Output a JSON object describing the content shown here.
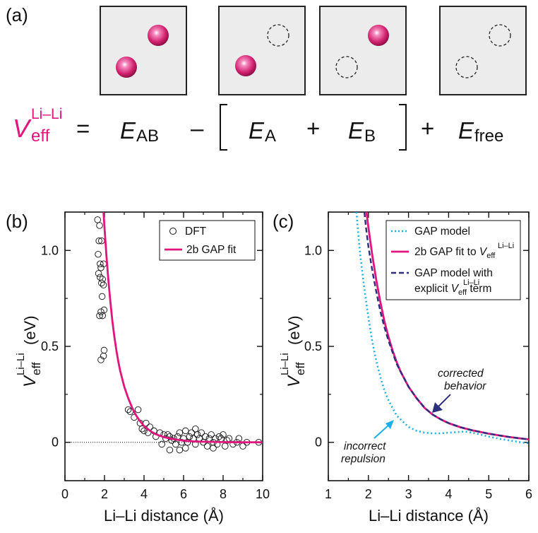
{
  "panel_a": {
    "label": "(a)",
    "equation": {
      "lhs_symbol": "V",
      "lhs_sub": "eff",
      "lhs_sup": "Li–Li",
      "equals": "=",
      "term1": {
        "symbol": "E",
        "sub": "AB"
      },
      "minus": "–",
      "term2": {
        "symbol": "E",
        "sub": "A"
      },
      "plus1": "+",
      "term3": {
        "symbol": "E",
        "sub": "B"
      },
      "plus2": "+",
      "term4": {
        "symbol": "E",
        "sub": "free"
      }
    }
  },
  "colors": {
    "magenta": "#e0157d",
    "cyan": "#1db0e6",
    "navy": "#2c2e7e",
    "atom_fill": "#d2216f"
  },
  "chart_data": [
    {
      "panel": "(b)",
      "type": "scatter",
      "xlabel": "Li–Li distance (Å)",
      "ylabel_symbol": "V",
      "ylabel_sub": "eff",
      "ylabel_sup": "Li–Li",
      "ylabel_unit": "(eV)",
      "xlim": [
        0,
        10
      ],
      "ylim": [
        -0.2,
        1.2
      ],
      "xticks": [
        "0",
        "2",
        "4",
        "6",
        "8",
        "10"
      ],
      "yticks": [
        "0",
        "0.5",
        "1.0"
      ],
      "legend": {
        "position": "top-right",
        "entries": [
          "DFT",
          "2b GAP fit"
        ]
      },
      "series": [
        {
          "name": "DFT",
          "marker": "open-circle",
          "points": [
            [
              1.65,
              1.16
            ],
            [
              1.75,
              1.13
            ],
            [
              1.72,
              1.05
            ],
            [
              1.85,
              1.05
            ],
            [
              1.68,
              0.98
            ],
            [
              1.78,
              0.93
            ],
            [
              1.82,
              0.91
            ],
            [
              1.95,
              0.93
            ],
            [
              1.7,
              0.88
            ],
            [
              1.78,
              0.86
            ],
            [
              1.9,
              0.85
            ],
            [
              1.85,
              0.83
            ],
            [
              1.95,
              0.82
            ],
            [
              1.88,
              0.76
            ],
            [
              1.98,
              0.69
            ],
            [
              1.82,
              0.68
            ],
            [
              1.9,
              0.66
            ],
            [
              1.75,
              0.66
            ],
            [
              1.82,
              0.43
            ],
            [
              1.95,
              0.45
            ],
            [
              1.98,
              0.48
            ],
            [
              3.2,
              0.17
            ],
            [
              3.3,
              0.16
            ],
            [
              3.7,
              0.17
            ],
            [
              3.5,
              0.13
            ],
            [
              3.8,
              0.1
            ],
            [
              4.1,
              0.1
            ],
            [
              4.3,
              0.08
            ],
            [
              3.9,
              0.07
            ],
            [
              4.0,
              0.06
            ],
            [
              4.2,
              0.05
            ],
            [
              4.5,
              0.06
            ],
            [
              4.6,
              0.03
            ],
            [
              4.8,
              0.05
            ],
            [
              5.0,
              0.04
            ],
            [
              5.1,
              0.02
            ],
            [
              5.2,
              0.04
            ],
            [
              5.3,
              0.03
            ],
            [
              5.4,
              0.01
            ],
            [
              5.5,
              0.02
            ],
            [
              5.6,
              -0.01
            ],
            [
              5.7,
              0.03
            ],
            [
              5.8,
              0.05
            ],
            [
              5.9,
              0.0
            ],
            [
              6.0,
              0.02
            ],
            [
              6.1,
              0.06
            ],
            [
              6.2,
              0.0
            ],
            [
              6.3,
              0.03
            ],
            [
              6.4,
              0.05
            ],
            [
              6.5,
              0.02
            ],
            [
              6.6,
              -0.01
            ],
            [
              6.7,
              0.04
            ],
            [
              6.8,
              0.02
            ],
            [
              6.9,
              0.05
            ],
            [
              7.0,
              0.0
            ],
            [
              7.1,
              0.03
            ],
            [
              7.2,
              -0.02
            ],
            [
              7.3,
              0.02
            ],
            [
              7.4,
              0.04
            ],
            [
              7.5,
              0.0
            ],
            [
              7.6,
              0.02
            ],
            [
              7.7,
              -0.01
            ],
            [
              7.8,
              0.03
            ],
            [
              7.9,
              0.02
            ],
            [
              8.0,
              0.04
            ],
            [
              8.1,
              -0.02
            ],
            [
              8.2,
              0.01
            ],
            [
              8.3,
              0.02
            ],
            [
              8.5,
              -0.01
            ],
            [
              8.7,
              0.0
            ],
            [
              8.8,
              0.02
            ],
            [
              9.0,
              -0.02
            ],
            [
              9.2,
              0.0
            ],
            [
              9.8,
              0.0
            ],
            [
              5.3,
              -0.04
            ],
            [
              6.1,
              -0.03
            ],
            [
              6.6,
              0.07
            ],
            [
              4.9,
              -0.01
            ],
            [
              5.8,
              -0.04
            ],
            [
              7.5,
              -0.03
            ]
          ]
        },
        {
          "name": "2b GAP fit",
          "type": "line",
          "color": "#e0157d",
          "points": [
            [
              1.95,
              1.2
            ],
            [
              2.0,
              1.12
            ],
            [
              2.1,
              0.97
            ],
            [
              2.2,
              0.84
            ],
            [
              2.3,
              0.73
            ],
            [
              2.4,
              0.63
            ],
            [
              2.5,
              0.55
            ],
            [
              2.6,
              0.48
            ],
            [
              2.7,
              0.42
            ],
            [
              2.8,
              0.37
            ],
            [
              2.9,
              0.33
            ],
            [
              3.0,
              0.29
            ],
            [
              3.2,
              0.23
            ],
            [
              3.4,
              0.18
            ],
            [
              3.6,
              0.14
            ],
            [
              3.8,
              0.11
            ],
            [
              4.0,
              0.085
            ],
            [
              4.3,
              0.06
            ],
            [
              4.6,
              0.042
            ],
            [
              5.0,
              0.027
            ],
            [
              5.5,
              0.016
            ],
            [
              6.0,
              0.009
            ],
            [
              6.5,
              0.005
            ],
            [
              7.0,
              0.003
            ],
            [
              8.0,
              0.001
            ],
            [
              9.0,
              0.0
            ],
            [
              10.0,
              0.0
            ]
          ]
        }
      ]
    },
    {
      "panel": "(c)",
      "type": "line",
      "xlabel": "Li–Li distance (Å)",
      "ylabel_symbol": "V",
      "ylabel_sub": "eff",
      "ylabel_sup": "Li–Li",
      "ylabel_unit": "(eV)",
      "xlim": [
        1,
        6
      ],
      "ylim": [
        -0.2,
        1.2
      ],
      "xticks": [
        "1",
        "2",
        "3",
        "4",
        "5",
        "6"
      ],
      "yticks": [
        "0",
        "0.5",
        "1.0"
      ],
      "legend": {
        "position": "top-right",
        "entries": [
          {
            "text": "GAP model",
            "style": "dotted",
            "color": "#1db0e6"
          },
          {
            "text": "2b GAP fit to ",
            "symbol": "V",
            "sub": "eff",
            "sup": "Li–Li",
            "style": "solid",
            "color": "#e0157d"
          },
          {
            "text": "GAP model with",
            "text2": "explicit ",
            "symbol": "V",
            "sub": "eff",
            "sup": "Li–Li",
            "text3": " term",
            "style": "dashed",
            "color": "#2c2e7e"
          }
        ]
      },
      "annotations": [
        {
          "lines": [
            "corrected",
            "behavior"
          ],
          "arrow_color": "#2c2e7e"
        },
        {
          "lines": [
            "incorrect",
            "repulsion"
          ],
          "arrow_color": "#1db0e6"
        }
      ],
      "series": [
        {
          "name": "GAP model",
          "style": "dotted",
          "color": "#1db0e6",
          "points": [
            [
              1.7,
              1.2
            ],
            [
              1.75,
              1.08
            ],
            [
              1.8,
              0.97
            ],
            [
              1.9,
              0.8
            ],
            [
              2.0,
              0.65
            ],
            [
              2.1,
              0.52
            ],
            [
              2.2,
              0.42
            ],
            [
              2.3,
              0.34
            ],
            [
              2.4,
              0.27
            ],
            [
              2.5,
              0.22
            ],
            [
              2.6,
              0.18
            ],
            [
              2.7,
              0.14
            ],
            [
              2.8,
              0.12
            ],
            [
              2.9,
              0.1
            ],
            [
              3.0,
              0.08
            ],
            [
              3.2,
              0.06
            ],
            [
              3.4,
              0.05
            ],
            [
              3.6,
              0.047
            ],
            [
              3.8,
              0.047
            ],
            [
              4.0,
              0.05
            ],
            [
              4.2,
              0.053
            ],
            [
              4.4,
              0.056
            ],
            [
              4.6,
              0.05
            ],
            [
              4.8,
              0.04
            ],
            [
              5.0,
              0.03
            ],
            [
              5.3,
              0.017
            ],
            [
              5.6,
              0.007
            ],
            [
              5.8,
              0.0
            ],
            [
              6.0,
              -0.005
            ]
          ]
        },
        {
          "name": "2b GAP fit",
          "style": "solid",
          "color": "#e0157d",
          "points": [
            [
              1.95,
              1.2
            ],
            [
              2.0,
              1.12
            ],
            [
              2.1,
              0.97
            ],
            [
              2.2,
              0.84
            ],
            [
              2.3,
              0.73
            ],
            [
              2.4,
              0.63
            ],
            [
              2.5,
              0.55
            ],
            [
              2.6,
              0.48
            ],
            [
              2.7,
              0.42
            ],
            [
              2.8,
              0.37
            ],
            [
              2.9,
              0.33
            ],
            [
              3.0,
              0.29
            ],
            [
              3.2,
              0.23
            ],
            [
              3.4,
              0.18
            ],
            [
              3.6,
              0.145
            ],
            [
              3.8,
              0.12
            ],
            [
              4.0,
              0.1
            ],
            [
              4.3,
              0.078
            ],
            [
              4.6,
              0.062
            ],
            [
              5.0,
              0.045
            ],
            [
              5.5,
              0.028
            ],
            [
              6.0,
              0.015
            ]
          ]
        },
        {
          "name": "GAP model with explicit term",
          "style": "dashed",
          "color": "#2c2e7e",
          "points": [
            [
              1.9,
              1.2
            ],
            [
              1.95,
              1.1
            ],
            [
              2.0,
              1.02
            ],
            [
              2.1,
              0.89
            ],
            [
              2.2,
              0.78
            ],
            [
              2.3,
              0.68
            ],
            [
              2.4,
              0.6
            ],
            [
              2.5,
              0.53
            ],
            [
              2.6,
              0.47
            ],
            [
              2.7,
              0.41
            ],
            [
              2.8,
              0.37
            ],
            [
              2.9,
              0.33
            ],
            [
              3.0,
              0.29
            ],
            [
              3.2,
              0.23
            ],
            [
              3.4,
              0.18
            ],
            [
              3.6,
              0.145
            ],
            [
              3.8,
              0.12
            ],
            [
              4.0,
              0.1
            ],
            [
              4.3,
              0.078
            ],
            [
              4.6,
              0.062
            ],
            [
              5.0,
              0.045
            ],
            [
              5.5,
              0.028
            ],
            [
              6.0,
              0.015
            ]
          ]
        }
      ]
    }
  ]
}
